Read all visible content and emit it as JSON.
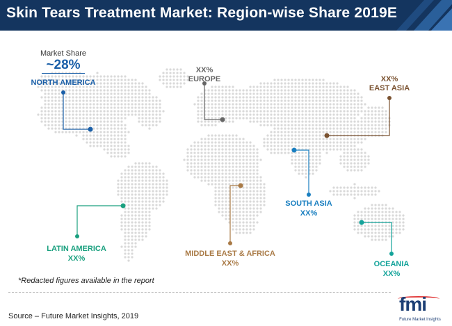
{
  "title": "Skin Tears Treatment Market: Region-wise Share 2019E",
  "market_share": {
    "caption": "Market Share",
    "value": "~28%"
  },
  "regions": [
    {
      "id": "north-america",
      "label": "NORTH AMERICA",
      "value": "",
      "color": "#1a5fa8"
    },
    {
      "id": "europe",
      "label": "EUROPE",
      "value": "XX%",
      "color": "#666666"
    },
    {
      "id": "east-asia",
      "label": "EAST ASIA",
      "value": "XX%",
      "color": "#7a5230"
    },
    {
      "id": "south-asia",
      "label": "SOUTH ASIA",
      "value": "XX%",
      "color": "#1a7fc0"
    },
    {
      "id": "latin-america",
      "label": "LATIN AMERICA",
      "value": "XX%",
      "color": "#1aa07f"
    },
    {
      "id": "middle-east-africa",
      "label": "MIDDLE EAST & AFRICA",
      "value": "XX%",
      "color": "#a97a46"
    },
    {
      "id": "oceania",
      "label": "OCEANIA",
      "value": "XX%",
      "color": "#13a39a"
    }
  ],
  "footnote": "*Redacted figures available in the report",
  "source": "Source – Future Market Insights, 2019",
  "logo": {
    "mark": "fmi",
    "subtitle": "Future Market Insights"
  },
  "colors": {
    "header_bg": "#14355f",
    "map_dots": "#d9d9d9"
  }
}
